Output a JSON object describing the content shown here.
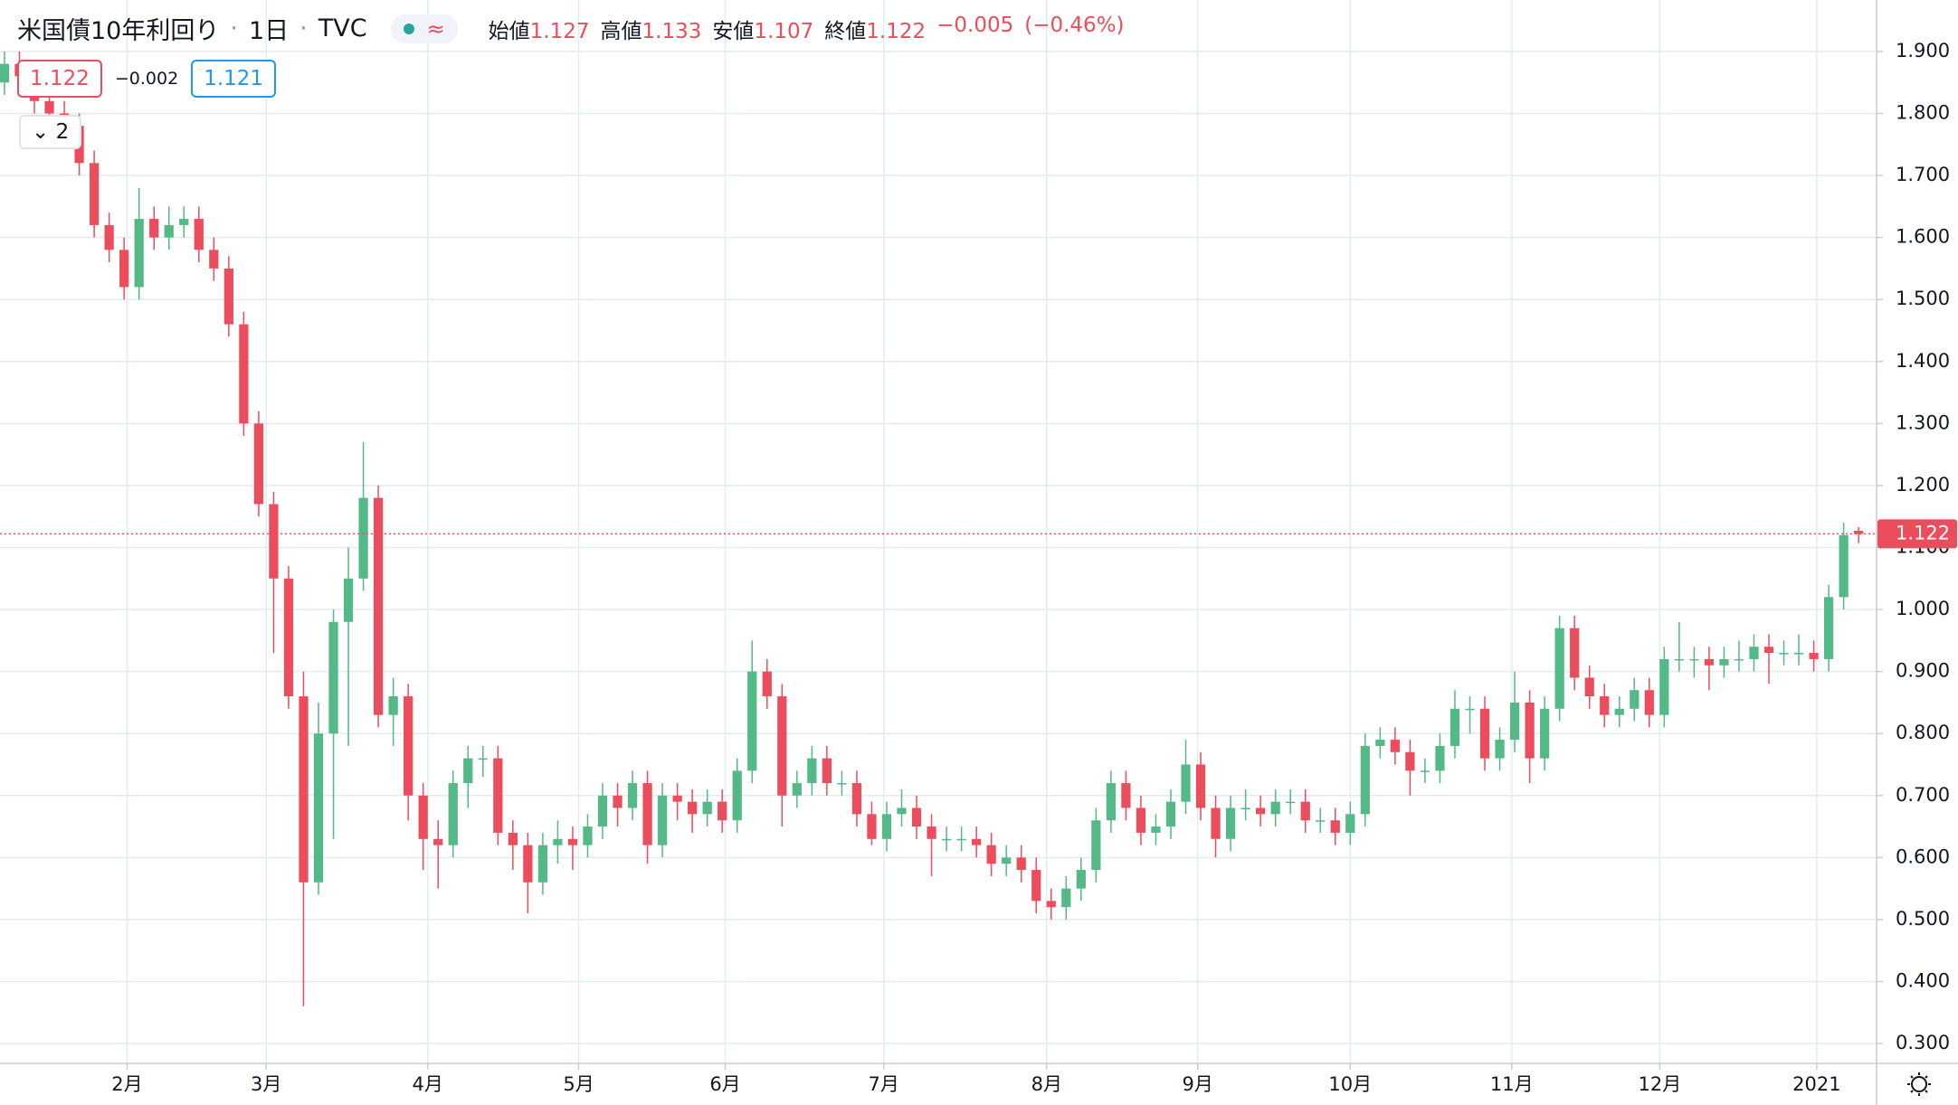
{
  "header": {
    "title": "米国債10年利回り",
    "interval": "1日",
    "source": "TVC",
    "icon": "≈",
    "ohlc_labels": [
      "始値",
      "高値",
      "安値",
      "終値"
    ],
    "change": "−0.005",
    "change_pct": "(−0.46%)",
    "sell_price": 1.122,
    "spread": "−0.002",
    "buy_price": 1.121,
    "indicators_count": 2
  },
  "chart_data": {
    "type": "candlestick",
    "up_color": "#53b987",
    "down_color": "#eb4d5c",
    "grid": true,
    "grid_color": "#e3ebf3",
    "price_line_color": "#eb4d5c",
    "xlim": [
      -0.3,
      125.2
    ],
    "ylim": [
      0.268,
      1.983
    ],
    "xticks": [
      {
        "value": 8.2,
        "label": "2月"
      },
      {
        "value": 17.5,
        "label": "3月"
      },
      {
        "value": 28.3,
        "label": "4月"
      },
      {
        "value": 38.4,
        "label": "5月"
      },
      {
        "value": 48.2,
        "label": "6月"
      },
      {
        "value": 58.8,
        "label": "7月"
      },
      {
        "value": 69.7,
        "label": "8月"
      },
      {
        "value": 79.8,
        "label": "9月"
      },
      {
        "value": 90,
        "label": "10月"
      },
      {
        "value": 100.8,
        "label": "11月"
      },
      {
        "value": 110.7,
        "label": "12月"
      },
      {
        "value": 121.2,
        "label": "2021"
      }
    ],
    "yticks": [
      {
        "value": 0.3,
        "label": "0.300"
      },
      {
        "value": 0.4,
        "label": "0.400"
      },
      {
        "value": 0.5,
        "label": "0.500"
      },
      {
        "value": 0.6,
        "label": "0.600"
      },
      {
        "value": 0.7,
        "label": "0.700"
      },
      {
        "value": 0.8,
        "label": "0.800"
      },
      {
        "value": 0.9,
        "label": "0.900"
      },
      {
        "value": 1.0,
        "label": "1.000"
      },
      {
        "value": 1.1,
        "label": "1.100"
      },
      {
        "value": 1.2,
        "label": "1.200"
      },
      {
        "value": 1.3,
        "label": "1.300"
      },
      {
        "value": 1.4,
        "label": "1.400"
      },
      {
        "value": 1.5,
        "label": "1.500"
      },
      {
        "value": 1.6,
        "label": "1.600"
      },
      {
        "value": 1.7,
        "label": "1.700"
      },
      {
        "value": 1.8,
        "label": "1.800"
      },
      {
        "value": 1.9,
        "label": "1.900"
      }
    ],
    "open": [
      1.85,
      1.88,
      1.86,
      1.82,
      1.8,
      1.78,
      1.72,
      1.62,
      1.58,
      1.52,
      1.63,
      1.6,
      1.62,
      1.63,
      1.58,
      1.55,
      1.46,
      1.3,
      1.17,
      1.05,
      0.86,
      0.56,
      0.8,
      0.98,
      1.05,
      1.18,
      0.83,
      0.86,
      0.7,
      0.63,
      0.62,
      0.72,
      0.76,
      0.76,
      0.64,
      0.62,
      0.56,
      0.62,
      0.63,
      0.62,
      0.65,
      0.7,
      0.68,
      0.72,
      0.62,
      0.7,
      0.69,
      0.67,
      0.69,
      0.66,
      0.74,
      0.9,
      0.86,
      0.7,
      0.72,
      0.76,
      0.72,
      0.72,
      0.67,
      0.63,
      0.67,
      0.68,
      0.65,
      0.63,
      0.63,
      0.63,
      0.62,
      0.59,
      0.6,
      0.58,
      0.53,
      0.52,
      0.55,
      0.58,
      0.66,
      0.72,
      0.68,
      0.64,
      0.65,
      0.69,
      0.75,
      0.68,
      0.63,
      0.68,
      0.68,
      0.67,
      0.69,
      0.69,
      0.66,
      0.66,
      0.64,
      0.67,
      0.78,
      0.79,
      0.77,
      0.74,
      0.74,
      0.78,
      0.84,
      0.84,
      0.76,
      0.79,
      0.85,
      0.76,
      0.84,
      0.97,
      0.89,
      0.86,
      0.83,
      0.84,
      0.87,
      0.83,
      0.92,
      0.92,
      0.92,
      0.91,
      0.92,
      0.92,
      0.94,
      0.93,
      0.93,
      0.93,
      0.92,
      1.02,
      1.127
    ],
    "high": [
      1.9,
      1.9,
      1.88,
      1.84,
      1.82,
      1.8,
      1.74,
      1.64,
      1.6,
      1.68,
      1.65,
      1.65,
      1.65,
      1.65,
      1.6,
      1.57,
      1.48,
      1.32,
      1.19,
      1.07,
      0.9,
      0.85,
      1.0,
      1.1,
      1.27,
      1.2,
      0.89,
      0.88,
      0.72,
      0.66,
      0.74,
      0.78,
      0.78,
      0.78,
      0.66,
      0.64,
      0.64,
      0.66,
      0.65,
      0.67,
      0.72,
      0.72,
      0.74,
      0.74,
      0.72,
      0.72,
      0.71,
      0.71,
      0.71,
      0.76,
      0.95,
      0.92,
      0.88,
      0.74,
      0.78,
      0.78,
      0.74,
      0.74,
      0.69,
      0.69,
      0.71,
      0.7,
      0.67,
      0.65,
      0.65,
      0.65,
      0.64,
      0.62,
      0.62,
      0.6,
      0.55,
      0.57,
      0.6,
      0.68,
      0.74,
      0.74,
      0.7,
      0.67,
      0.71,
      0.79,
      0.77,
      0.7,
      0.7,
      0.71,
      0.7,
      0.71,
      0.71,
      0.71,
      0.68,
      0.68,
      0.69,
      0.8,
      0.81,
      0.81,
      0.79,
      0.76,
      0.8,
      0.87,
      0.86,
      0.86,
      0.81,
      0.9,
      0.87,
      0.86,
      0.99,
      0.99,
      0.91,
      0.88,
      0.86,
      0.89,
      0.89,
      0.94,
      0.98,
      0.94,
      0.94,
      0.94,
      0.95,
      0.96,
      0.96,
      0.95,
      0.96,
      0.95,
      1.04,
      1.14,
      1.133
    ],
    "low": [
      1.83,
      1.84,
      1.8,
      1.78,
      1.76,
      1.7,
      1.6,
      1.56,
      1.5,
      1.5,
      1.58,
      1.58,
      1.6,
      1.56,
      1.53,
      1.44,
      1.28,
      1.15,
      0.93,
      0.84,
      0.36,
      0.54,
      0.63,
      0.78,
      1.03,
      0.81,
      0.78,
      0.66,
      0.58,
      0.55,
      0.6,
      0.68,
      0.73,
      0.62,
      0.58,
      0.51,
      0.54,
      0.59,
      0.58,
      0.6,
      0.63,
      0.65,
      0.66,
      0.59,
      0.6,
      0.66,
      0.64,
      0.65,
      0.64,
      0.64,
      0.72,
      0.84,
      0.65,
      0.68,
      0.7,
      0.7,
      0.7,
      0.65,
      0.62,
      0.61,
      0.65,
      0.63,
      0.57,
      0.61,
      0.61,
      0.6,
      0.57,
      0.57,
      0.56,
      0.51,
      0.5,
      0.5,
      0.53,
      0.56,
      0.64,
      0.66,
      0.62,
      0.62,
      0.63,
      0.67,
      0.66,
      0.6,
      0.61,
      0.66,
      0.65,
      0.65,
      0.67,
      0.64,
      0.64,
      0.62,
      0.62,
      0.65,
      0.76,
      0.75,
      0.7,
      0.72,
      0.72,
      0.76,
      0.8,
      0.74,
      0.74,
      0.77,
      0.72,
      0.74,
      0.82,
      0.87,
      0.84,
      0.81,
      0.81,
      0.82,
      0.81,
      0.81,
      0.9,
      0.89,
      0.87,
      0.89,
      0.9,
      0.9,
      0.88,
      0.91,
      0.91,
      0.9,
      0.9,
      1.0,
      1.107
    ],
    "close": [
      1.88,
      1.86,
      1.82,
      1.8,
      1.78,
      1.72,
      1.62,
      1.58,
      1.52,
      1.63,
      1.6,
      1.62,
      1.63,
      1.58,
      1.55,
      1.46,
      1.3,
      1.17,
      1.05,
      0.86,
      0.56,
      0.8,
      0.98,
      1.05,
      1.18,
      0.83,
      0.86,
      0.7,
      0.63,
      0.62,
      0.72,
      0.76,
      0.76,
      0.64,
      0.62,
      0.56,
      0.62,
      0.63,
      0.62,
      0.65,
      0.7,
      0.68,
      0.72,
      0.62,
      0.7,
      0.69,
      0.67,
      0.69,
      0.66,
      0.74,
      0.9,
      0.86,
      0.7,
      0.72,
      0.76,
      0.72,
      0.72,
      0.67,
      0.63,
      0.67,
      0.68,
      0.65,
      0.63,
      0.63,
      0.63,
      0.62,
      0.59,
      0.6,
      0.58,
      0.53,
      0.52,
      0.55,
      0.58,
      0.66,
      0.72,
      0.68,
      0.64,
      0.65,
      0.69,
      0.75,
      0.68,
      0.63,
      0.68,
      0.68,
      0.67,
      0.69,
      0.69,
      0.66,
      0.66,
      0.64,
      0.67,
      0.78,
      0.79,
      0.77,
      0.74,
      0.74,
      0.78,
      0.84,
      0.84,
      0.76,
      0.79,
      0.85,
      0.76,
      0.84,
      0.97,
      0.89,
      0.86,
      0.83,
      0.84,
      0.87,
      0.83,
      0.92,
      0.92,
      0.92,
      0.91,
      0.92,
      0.92,
      0.94,
      0.93,
      0.93,
      0.93,
      0.92,
      1.02,
      1.12,
      1.122
    ]
  }
}
